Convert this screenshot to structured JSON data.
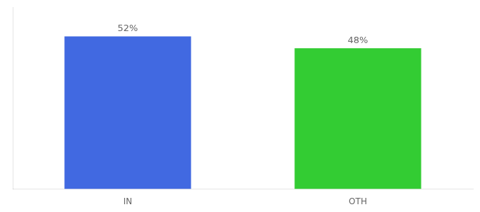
{
  "chart_data": {
    "type": "bar",
    "categories": [
      "IN",
      "OTH"
    ],
    "values": [
      52,
      48
    ],
    "colors": [
      "#4169e1",
      "#33cc33"
    ],
    "value_labels": [
      "52%",
      "48%"
    ],
    "data_labels": true,
    "ylim": [
      0,
      62
    ],
    "grid": false,
    "tick_labels": "x"
  }
}
